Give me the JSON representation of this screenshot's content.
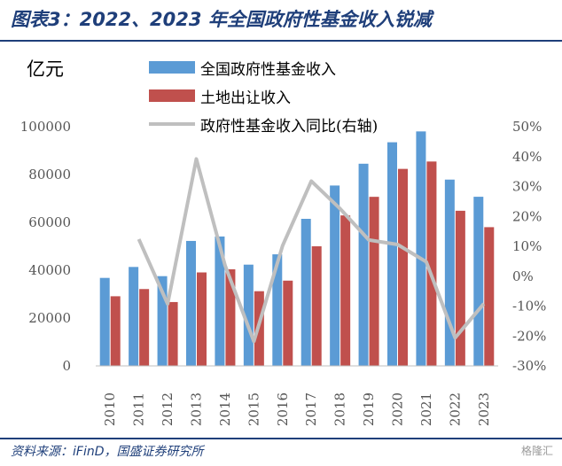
{
  "header": {
    "title": "图表3：2022、2023 年全国政府性基金收入锐减"
  },
  "footer": {
    "source": "资料来源：iFinD，国盛证券研究所",
    "watermark": "格隆汇"
  },
  "colors": {
    "fund": "#5b9bd5",
    "land": "#c0504d",
    "yoy": "#bfbfbf",
    "accent": "#1f3f7a"
  },
  "chart_data": {
    "type": "bar",
    "unit_label": "亿元",
    "categories": [
      "2010",
      "2011",
      "2012",
      "2013",
      "2014",
      "2015",
      "2016",
      "2017",
      "2018",
      "2019",
      "2020",
      "2021",
      "2022",
      "2023"
    ],
    "series": [
      {
        "name": "全国政府性基金收入",
        "type": "bar",
        "axis": "left",
        "values": [
          36785,
          41360,
          37517,
          52239,
          54093,
          42330,
          46643,
          61480,
          75405,
          84516,
          93489,
          98024,
          77879,
          70705
        ]
      },
      {
        "name": "土地出让收入",
        "type": "bar",
        "axis": "left",
        "values": [
          29110,
          32126,
          26691,
          39073,
          40385,
          31221,
          35640,
          49997,
          62911,
          70679,
          82359,
          85441,
          64854,
          57996
        ]
      },
      {
        "name": "政府性基金收入同比(右轴)",
        "type": "line",
        "axis": "right",
        "values": [
          null,
          12.4,
          -9.3,
          39.2,
          3.6,
          -21.8,
          10.2,
          31.8,
          22.6,
          12.1,
          10.6,
          4.8,
          -20.6,
          -9.2
        ]
      }
    ],
    "y_left": {
      "min": 0,
      "max": 100000,
      "ticks": [
        "0",
        "20000",
        "40000",
        "60000",
        "80000",
        "100000"
      ]
    },
    "y_right": {
      "min": -30,
      "max": 50,
      "ticks": [
        "-30%",
        "-20%",
        "-10%",
        "0%",
        "10%",
        "20%",
        "30%",
        "40%",
        "50%"
      ]
    },
    "grid": false,
    "legend_position": "top"
  }
}
